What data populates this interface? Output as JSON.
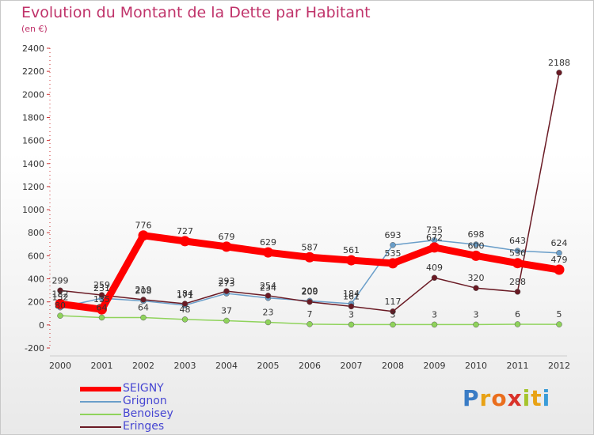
{
  "header": {
    "title": "Evolution du Montant de la Dette par Habitant",
    "unit": "(en €)"
  },
  "chart_data": {
    "type": "line",
    "title": "Evolution du Montant de la Dette par Habitant",
    "subtitle": "(en €)",
    "xlabel": "",
    "ylabel": "",
    "x": [
      "2000",
      "2001",
      "2002",
      "2003",
      "2004",
      "2005",
      "2006",
      "2007",
      "2008",
      "2009",
      "2010",
      "2011",
      "2012"
    ],
    "ylim": [
      -200,
      2400
    ],
    "yticks": [
      -200,
      0,
      200,
      400,
      600,
      800,
      1000,
      1200,
      1400,
      1600,
      1800,
      2000,
      2200,
      2400
    ],
    "grid": false,
    "legend_position": "bottom-left",
    "series": [
      {
        "name": "SEIGNY",
        "color": "#ff0000",
        "values": [
          182,
          135,
          776,
          727,
          679,
          629,
          587,
          561,
          535,
          672,
          600,
          536,
          479
        ]
      },
      {
        "name": "Grignon",
        "color": "#6a9ec9",
        "values": [
          152,
          231,
          208,
          171,
          273,
          234,
          209,
          184,
          693,
          735,
          698,
          643,
          624
        ]
      },
      {
        "name": "Benoisey",
        "color": "#8fd35b",
        "values": [
          80,
          64,
          64,
          48,
          37,
          23,
          7,
          3,
          3,
          3,
          3,
          6,
          5
        ]
      },
      {
        "name": "Eringes",
        "color": "#6a1a24",
        "values": [
          299,
          259,
          219,
          184,
          293,
          254,
          200,
          161,
          117,
          409,
          320,
          288,
          2188
        ]
      }
    ]
  },
  "logo": {
    "letters": [
      "P",
      "r",
      "o",
      "x",
      "i",
      "t",
      "i"
    ],
    "colors": [
      "#3a7cc5",
      "#e8a215",
      "#ea6e1d",
      "#d9322a",
      "#a5c42c",
      "#e8a215",
      "#3a9cd8"
    ]
  }
}
